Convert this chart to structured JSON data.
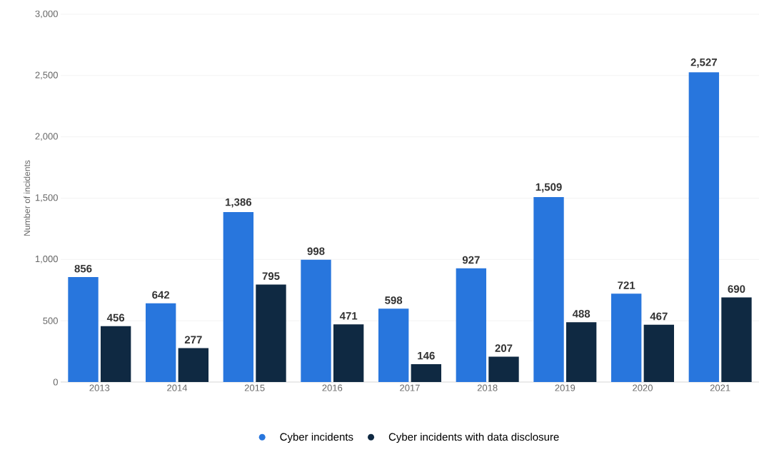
{
  "chart_data": {
    "type": "bar",
    "ylabel": "Number of incidents",
    "categories": [
      "2013",
      "2014",
      "2015",
      "2016",
      "2017",
      "2018",
      "2019",
      "2020",
      "2021"
    ],
    "series": [
      {
        "name": "Cyber incidents",
        "color": "#2876dd",
        "values": [
          856,
          642,
          1386,
          998,
          598,
          927,
          1509,
          721,
          2527
        ],
        "value_labels": [
          "856",
          "642",
          "1,386",
          "998",
          "598",
          "927",
          "1,509",
          "721",
          "2,527"
        ]
      },
      {
        "name": "Cyber incidents with data disclosure",
        "color": "#0f2942",
        "values": [
          456,
          277,
          795,
          471,
          146,
          207,
          488,
          467,
          690
        ],
        "value_labels": [
          "456",
          "277",
          "795",
          "471",
          "146",
          "207",
          "488",
          "467",
          "690"
        ]
      }
    ],
    "ylim": [
      0,
      3000
    ],
    "yticks": [
      0,
      500,
      {
        "value": 1000,
        "label": "1,000"
      },
      {
        "value": 1500,
        "label": "1,500"
      },
      {
        "value": 2000,
        "label": "2,000"
      },
      {
        "value": 2500,
        "label": "2,500"
      },
      {
        "value": 3000,
        "label": "3,000"
      }
    ],
    "grid": "y",
    "legend": "bottom"
  }
}
